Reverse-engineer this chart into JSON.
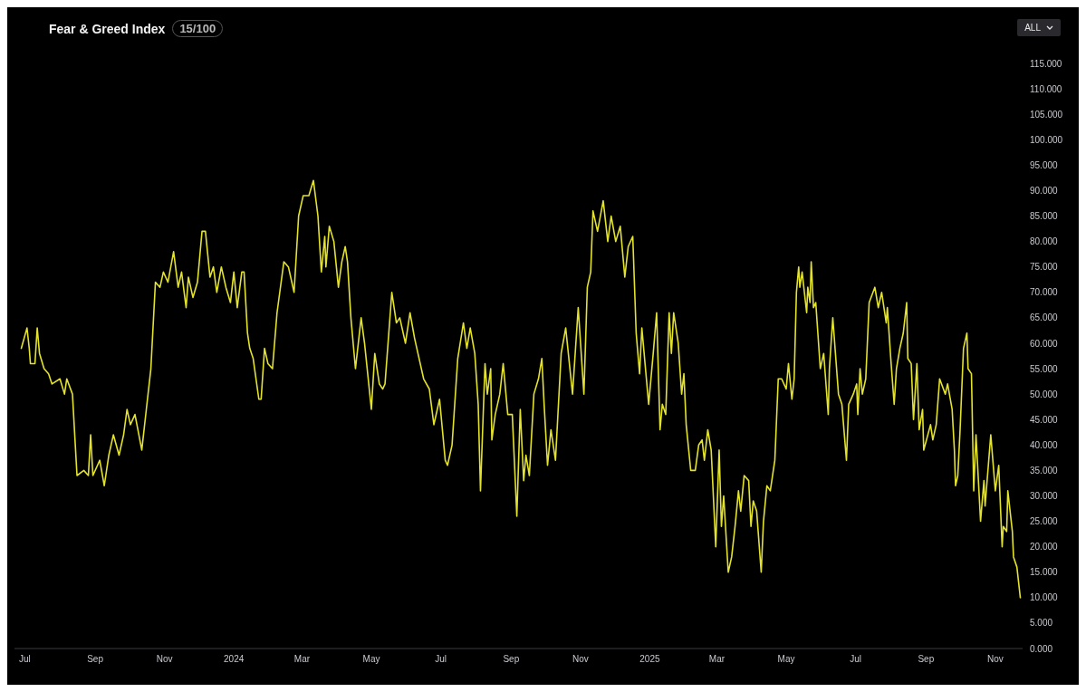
{
  "chart_data": {
    "type": "line",
    "title": "Fear & Greed Index",
    "subtitle": "15/100",
    "annotations": [
      "ALL"
    ],
    "x": [
      "2023-06-28",
      "2023-07-03",
      "2023-07-05",
      "2023-07-06",
      "2023-07-10",
      "2023-07-12",
      "2023-07-14",
      "2023-07-18",
      "2023-07-22",
      "2023-07-25",
      "2023-08-01",
      "2023-08-05",
      "2023-08-07",
      "2023-08-12",
      "2023-08-16",
      "2023-08-22",
      "2023-08-26",
      "2023-08-28",
      "2023-08-30",
      "2023-09-05",
      "2023-09-09",
      "2023-09-13",
      "2023-09-17",
      "2023-09-22",
      "2023-09-26",
      "2023-09-29",
      "2023-10-02",
      "2023-10-06",
      "2023-10-12",
      "2023-10-16",
      "2023-10-20",
      "2023-10-24",
      "2023-10-28",
      "2023-10-31",
      "2023-11-04",
      "2023-11-09",
      "2023-11-13",
      "2023-11-16",
      "2023-11-20",
      "2023-11-22",
      "2023-11-26",
      "2023-11-30",
      "2023-12-04",
      "2023-12-07",
      "2023-12-11",
      "2023-12-14",
      "2023-12-17",
      "2023-12-21",
      "2023-12-25",
      "2023-12-29",
      "2024-01-01",
      "2024-01-04",
      "2024-01-08",
      "2024-01-10",
      "2024-01-13",
      "2024-01-15",
      "2024-01-18",
      "2024-01-23",
      "2024-01-25",
      "2024-01-28",
      "2024-01-31",
      "2024-02-04",
      "2024-02-08",
      "2024-02-14",
      "2024-02-18",
      "2024-02-23",
      "2024-02-27",
      "2024-03-02",
      "2024-03-05",
      "2024-03-07",
      "2024-03-11",
      "2024-03-15",
      "2024-03-18",
      "2024-03-21",
      "2024-03-22",
      "2024-03-25",
      "2024-03-29",
      "2024-04-02",
      "2024-04-05",
      "2024-04-08",
      "2024-04-10",
      "2024-04-13",
      "2024-04-17",
      "2024-04-22",
      "2024-04-25",
      "2024-05-01",
      "2024-05-04",
      "2024-05-08",
      "2024-05-11",
      "2024-05-13",
      "2024-05-16",
      "2024-05-19",
      "2024-05-23",
      "2024-05-26",
      "2024-05-31",
      "2024-06-04",
      "2024-06-08",
      "2024-06-12",
      "2024-06-16",
      "2024-06-21",
      "2024-06-25",
      "2024-06-30",
      "2024-07-05",
      "2024-07-07",
      "2024-07-11",
      "2024-07-16",
      "2024-07-21",
      "2024-07-24",
      "2024-07-27",
      "2024-07-31",
      "2024-08-03",
      "2024-08-05",
      "2024-08-09",
      "2024-08-11",
      "2024-08-14",
      "2024-08-15",
      "2024-08-18",
      "2024-08-22",
      "2024-08-25",
      "2024-08-29",
      "2024-09-02",
      "2024-09-06",
      "2024-09-09",
      "2024-09-12",
      "2024-09-14",
      "2024-09-17",
      "2024-09-21",
      "2024-09-25",
      "2024-09-28",
      "2024-09-30",
      "2024-10-03",
      "2024-10-06",
      "2024-10-10",
      "2024-10-15",
      "2024-10-19",
      "2024-10-25",
      "2024-10-30",
      "2024-11-04",
      "2024-11-07",
      "2024-11-10",
      "2024-11-12",
      "2024-11-16",
      "2024-11-21",
      "2024-11-25",
      "2024-11-28",
      "2024-12-02",
      "2024-12-06",
      "2024-12-10",
      "2024-12-13",
      "2024-12-17",
      "2024-12-20",
      "2024-12-23",
      "2024-12-25",
      "2024-12-31",
      "2025-01-04",
      "2025-01-07",
      "2025-01-10",
      "2025-01-12",
      "2025-01-15",
      "2025-01-18",
      "2025-01-20",
      "2025-01-22",
      "2025-01-26",
      "2025-01-29",
      "2025-01-31",
      "2025-02-02",
      "2025-02-06",
      "2025-02-10",
      "2025-02-13",
      "2025-02-16",
      "2025-02-18",
      "2025-02-21",
      "2025-02-24",
      "2025-02-28",
      "2025-03-03",
      "2025-03-05",
      "2025-03-07",
      "2025-03-11",
      "2025-03-14",
      "2025-03-17",
      "2025-03-20",
      "2025-03-22",
      "2025-03-25",
      "2025-03-29",
      "2025-03-31",
      "2025-04-02",
      "2025-04-05",
      "2025-04-09",
      "2025-04-11",
      "2025-04-14",
      "2025-04-17",
      "2025-04-21",
      "2025-04-24",
      "2025-04-27",
      "2025-05-01",
      "2025-05-03",
      "2025-05-06",
      "2025-05-08",
      "2025-05-10",
      "2025-05-12",
      "2025-05-13",
      "2025-05-15",
      "2025-05-19",
      "2025-05-20",
      "2025-05-22",
      "2025-05-23",
      "2025-05-25",
      "2025-05-27",
      "2025-05-31",
      "2025-06-03",
      "2025-06-07",
      "2025-06-08",
      "2025-06-11",
      "2025-06-16",
      "2025-06-19",
      "2025-06-23",
      "2025-06-25",
      "2025-06-29",
      "2025-07-02",
      "2025-07-03",
      "2025-07-05",
      "2025-07-07",
      "2025-07-10",
      "2025-07-13",
      "2025-07-18",
      "2025-07-21",
      "2025-07-24",
      "2025-07-28",
      "2025-07-29",
      "2025-08-01",
      "2025-08-04",
      "2025-08-06",
      "2025-08-09",
      "2025-08-12",
      "2025-08-15",
      "2025-08-16",
      "2025-08-19",
      "2025-08-21",
      "2025-08-24",
      "2025-08-26",
      "2025-08-29",
      "2025-08-30",
      "2025-09-05",
      "2025-09-07",
      "2025-09-10",
      "2025-09-13",
      "2025-09-18",
      "2025-09-20",
      "2025-09-24",
      "2025-09-26",
      "2025-09-27",
      "2025-09-29",
      "2025-10-01",
      "2025-10-04",
      "2025-10-07",
      "2025-10-08",
      "2025-10-11",
      "2025-10-13",
      "2025-10-15",
      "2025-10-19",
      "2025-10-22",
      "2025-10-23",
      "2025-10-28",
      "2025-11-01",
      "2025-11-04",
      "2025-11-07",
      "2025-11-08",
      "2025-11-11",
      "2025-11-12",
      "2025-11-16",
      "2025-11-17",
      "2025-11-20",
      "2025-11-23"
    ],
    "series": [
      {
        "color": "#e3e22c",
        "values": [
          59,
          63,
          59,
          56,
          56,
          63,
          58,
          55,
          54,
          52,
          53,
          50,
          53,
          50,
          34,
          35,
          34,
          42,
          34,
          37,
          32,
          38,
          42,
          38,
          42,
          47,
          44,
          46,
          39,
          47,
          55,
          72,
          71,
          74,
          72,
          78,
          71,
          74,
          67,
          73,
          69,
          72,
          82,
          82,
          73,
          75,
          70,
          75,
          71,
          68,
          74,
          67,
          74,
          74,
          62,
          59,
          57,
          49,
          49,
          59,
          56,
          55,
          66,
          76,
          75,
          70,
          85,
          89,
          89,
          89,
          92,
          85,
          74,
          81,
          75,
          83,
          80,
          71,
          76,
          79,
          76,
          65,
          55,
          65,
          60,
          47,
          58,
          52,
          51,
          52,
          61,
          70,
          64,
          65,
          60,
          66,
          61,
          57,
          53,
          51,
          44,
          49,
          37,
          36,
          40,
          57,
          64,
          59,
          63,
          58,
          48,
          31,
          56,
          50,
          55,
          41,
          46,
          50,
          56,
          46,
          46,
          26,
          47,
          33,
          38,
          34,
          50,
          53,
          57,
          48,
          36,
          43,
          37,
          58,
          63,
          50,
          67,
          50,
          71,
          74,
          86,
          82,
          88,
          80,
          85,
          80,
          83,
          73,
          79,
          81,
          62,
          54,
          63,
          48,
          58,
          66,
          43,
          48,
          46,
          66,
          58,
          66,
          60,
          50,
          54,
          44,
          35,
          35,
          40,
          41,
          37,
          43,
          39,
          20,
          39,
          24,
          30,
          15,
          18,
          24,
          31,
          27,
          34,
          33,
          24,
          29,
          27,
          15,
          25,
          32,
          31,
          37,
          53,
          53,
          51,
          56,
          49,
          53,
          70,
          75,
          71,
          74,
          66,
          71,
          68,
          76,
          67,
          68,
          55,
          58,
          46,
          55,
          65,
          50,
          48,
          37,
          48,
          50,
          52,
          46,
          55,
          50,
          53,
          68,
          71,
          67,
          70,
          64,
          67,
          57,
          48,
          55,
          59,
          62,
          68,
          57,
          56,
          45,
          56,
          43,
          47,
          39,
          44,
          41,
          44,
          53,
          50,
          52,
          47,
          39,
          32,
          34,
          43,
          59,
          62,
          55,
          54,
          31,
          42,
          25,
          33,
          28,
          42,
          31,
          36,
          20,
          24,
          23,
          31,
          23,
          18,
          16,
          10
        ]
      }
    ],
    "xticks": [
      {
        "value": "2023-07-01",
        "label": "Jul"
      },
      {
        "value": "2023-09-01",
        "label": "Sep"
      },
      {
        "value": "2023-11-01",
        "label": "Nov"
      },
      {
        "value": "2024-01-01",
        "label": "2024"
      },
      {
        "value": "2024-03-01",
        "label": "Mar"
      },
      {
        "value": "2024-05-01",
        "label": "May"
      },
      {
        "value": "2024-07-01",
        "label": "Jul"
      },
      {
        "value": "2024-09-01",
        "label": "Sep"
      },
      {
        "value": "2024-11-01",
        "label": "Nov"
      },
      {
        "value": "2025-01-01",
        "label": "2025"
      },
      {
        "value": "2025-03-01",
        "label": "Mar"
      },
      {
        "value": "2025-05-01",
        "label": "May"
      },
      {
        "value": "2025-07-01",
        "label": "Jul"
      },
      {
        "value": "2025-09-01",
        "label": "Sep"
      },
      {
        "value": "2025-11-01",
        "label": "Nov"
      }
    ],
    "xlim": [
      "2023-06-22",
      "2025-11-25"
    ],
    "ylim": [
      0,
      115
    ],
    "yticks": [
      {
        "value": 0,
        "label": "0.000"
      },
      {
        "value": 5,
        "label": "5.000"
      },
      {
        "value": 10,
        "label": "10.000"
      },
      {
        "value": 15,
        "label": "15.000"
      },
      {
        "value": 20,
        "label": "20.000"
      },
      {
        "value": 25,
        "label": "25.000"
      },
      {
        "value": 30,
        "label": "30.000"
      },
      {
        "value": 35,
        "label": "35.000"
      },
      {
        "value": 40,
        "label": "40.000"
      },
      {
        "value": 45,
        "label": "45.000"
      },
      {
        "value": 50,
        "label": "50.000"
      },
      {
        "value": 55,
        "label": "55.000"
      },
      {
        "value": 60,
        "label": "60.000"
      },
      {
        "value": 65,
        "label": "65.000"
      },
      {
        "value": 70,
        "label": "70.000"
      },
      {
        "value": 75,
        "label": "75.000"
      },
      {
        "value": 80,
        "label": "80.000"
      },
      {
        "value": 85,
        "label": "85.000"
      },
      {
        "value": 90,
        "label": "90.000"
      },
      {
        "value": 95,
        "label": "95.000"
      },
      {
        "value": 100,
        "label": "100.000"
      },
      {
        "value": 105,
        "label": "105.000"
      },
      {
        "value": 110,
        "label": "110.000"
      },
      {
        "value": 115,
        "label": "115.000"
      }
    ]
  }
}
